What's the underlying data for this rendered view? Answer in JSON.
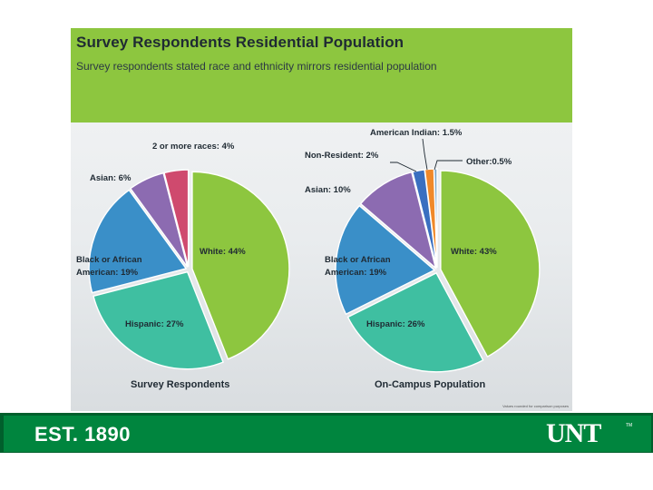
{
  "header": {
    "title": "Survey Respondents Residential Population",
    "subtitle": "Survey respondents stated race and ethnicity mirrors residential population"
  },
  "footnote": "Values rounded for comparison purposes",
  "footer": {
    "est": "EST. 1890",
    "logo": "UNT",
    "tm": "TM"
  },
  "colors": {
    "white": "#8dc63f",
    "hispanic": "#3fbfa1",
    "black": "#3a8fc8",
    "asian": "#8c6bb1",
    "twoOrMore": "#cf4a6e",
    "nonResident": "#3a6fc0",
    "americanIndian": "#f0892a",
    "other": "#7ea6c8"
  },
  "chart_data": [
    {
      "type": "pie",
      "title": "Survey Respondents",
      "slices": [
        {
          "key": "white",
          "label": "White: 44%",
          "value": 44
        },
        {
          "key": "hispanic",
          "label": "Hispanic: 27%",
          "value": 27
        },
        {
          "key": "black",
          "label1": "Black or African",
          "label2": "American: 19%",
          "value": 19
        },
        {
          "key": "asian",
          "label": "Asian: 6%",
          "value": 6
        },
        {
          "key": "twoOrMore",
          "label": "2 or more races: 4%",
          "value": 4
        }
      ]
    },
    {
      "type": "pie",
      "title": "On-Campus Population",
      "slices": [
        {
          "key": "white",
          "label": "White: 43%",
          "value": 43
        },
        {
          "key": "hispanic",
          "label": "Hispanic: 26%",
          "value": 26
        },
        {
          "key": "black",
          "label1": "Black or African",
          "label2": "American: 19%",
          "value": 19
        },
        {
          "key": "asian",
          "label": "Asian: 10%",
          "value": 10
        },
        {
          "key": "nonResident",
          "label": "Non-Resident: 2%",
          "value": 2
        },
        {
          "key": "americanIndian",
          "label": "American Indian: 1.5%",
          "value": 1.5
        },
        {
          "key": "other",
          "label": "Other:0.5%",
          "value": 0.5
        }
      ]
    }
  ]
}
